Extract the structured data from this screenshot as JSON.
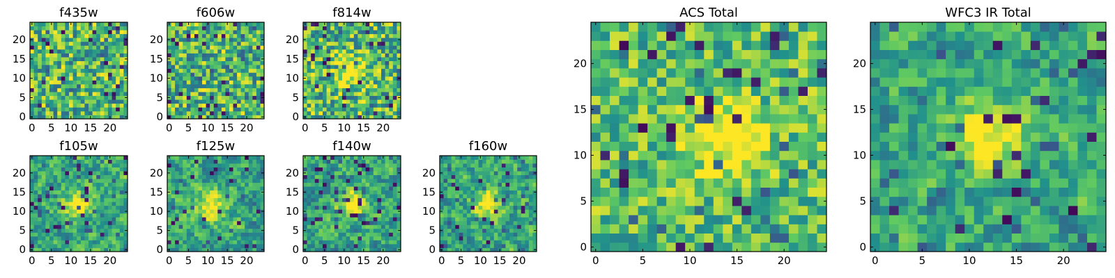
{
  "figure": {
    "colormap": [
      "#440154",
      "#3b528b",
      "#21918c",
      "#5ec962",
      "#fde725"
    ]
  },
  "chart_data": [
    {
      "type": "heatmap",
      "title": "f435w",
      "grid": 25,
      "xticks": [
        0,
        5,
        10,
        15,
        20
      ],
      "yticks": [
        0,
        5,
        10,
        15,
        20
      ],
      "xlim": [
        0,
        24
      ],
      "ylim": [
        0,
        24
      ],
      "seed": 11,
      "pattern": "noise",
      "bright_spot": false
    },
    {
      "type": "heatmap",
      "title": "f606w",
      "grid": 25,
      "xticks": [
        0,
        5,
        10,
        15,
        20
      ],
      "yticks": [
        0,
        5,
        10,
        15,
        20
      ],
      "xlim": [
        0,
        24
      ],
      "ylim": [
        0,
        24
      ],
      "seed": 23,
      "pattern": "noise",
      "bright_spot": false
    },
    {
      "type": "heatmap",
      "title": "f814w",
      "grid": 25,
      "xticks": [
        0,
        5,
        10,
        15,
        20
      ],
      "yticks": [
        0,
        5,
        10,
        15,
        20
      ],
      "xlim": [
        0,
        24
      ],
      "ylim": [
        0,
        24
      ],
      "seed": 37,
      "pattern": "noise",
      "bright_spot": true,
      "spot_center": [
        12,
        12
      ]
    },
    {
      "type": "heatmap",
      "title": "f105w",
      "grid": 25,
      "xticks": [
        0,
        5,
        10,
        15,
        20
      ],
      "yticks": [
        0,
        5,
        10,
        15,
        20
      ],
      "xlim": [
        0,
        24
      ],
      "ylim": [
        0,
        24
      ],
      "seed": 41,
      "pattern": "smooth",
      "bright_spot": true,
      "spot_center": [
        12,
        12
      ]
    },
    {
      "type": "heatmap",
      "title": "f125w",
      "grid": 25,
      "xticks": [
        0,
        5,
        10,
        15,
        20
      ],
      "yticks": [
        0,
        5,
        10,
        15,
        20
      ],
      "xlim": [
        0,
        24
      ],
      "ylim": [
        0,
        24
      ],
      "seed": 53,
      "pattern": "smooth",
      "bright_spot": true,
      "spot_center": [
        11,
        11
      ]
    },
    {
      "type": "heatmap",
      "title": "f140w",
      "grid": 25,
      "xticks": [
        0,
        5,
        10,
        15,
        20
      ],
      "yticks": [
        0,
        5,
        10,
        15,
        20
      ],
      "xlim": [
        0,
        24
      ],
      "ylim": [
        0,
        24
      ],
      "seed": 67,
      "pattern": "smooth",
      "bright_spot": true,
      "spot_center": [
        12,
        12
      ]
    },
    {
      "type": "heatmap",
      "title": "f160w",
      "grid": 25,
      "xticks": [
        0,
        5,
        10,
        15,
        20
      ],
      "yticks": [
        0,
        5,
        10,
        15,
        20
      ],
      "xlim": [
        0,
        24
      ],
      "ylim": [
        0,
        24
      ],
      "seed": 79,
      "pattern": "smooth",
      "bright_spot": true,
      "spot_center": [
        12,
        12
      ]
    },
    {
      "type": "heatmap",
      "title": "ACS Total",
      "grid": 25,
      "xticks": [
        0,
        5,
        10,
        15,
        20
      ],
      "yticks": [
        0,
        5,
        10,
        15,
        20
      ],
      "xlim": [
        0,
        24
      ],
      "ylim": [
        0,
        24
      ],
      "seed": 97,
      "pattern": "noise_bright",
      "bright_spot": true,
      "spot_center": [
        14,
        12
      ]
    },
    {
      "type": "heatmap",
      "title": "WFC3 IR Total",
      "grid": 25,
      "xticks": [
        0,
        5,
        10,
        15,
        20
      ],
      "yticks": [
        0,
        5,
        10,
        15,
        20
      ],
      "xlim": [
        0,
        24
      ],
      "ylim": [
        0,
        24
      ],
      "seed": 113,
      "pattern": "smooth",
      "bright_spot": true,
      "spot_center": [
        12,
        12
      ]
    }
  ]
}
